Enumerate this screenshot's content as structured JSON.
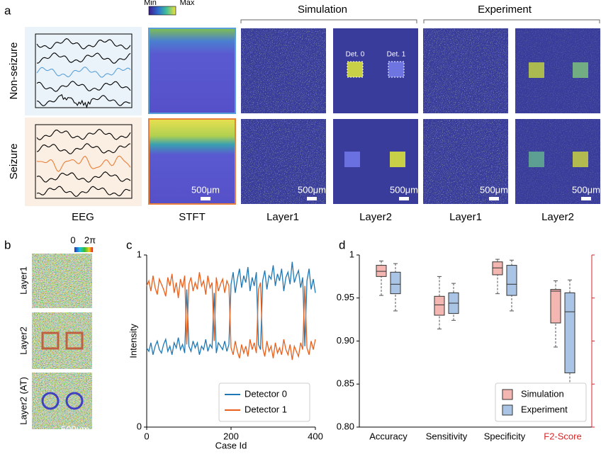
{
  "panel_a": {
    "label": "a",
    "column_headers": [
      "Simulation",
      "Experiment"
    ],
    "colorbar": [
      "Min",
      "Max"
    ],
    "row_labels": [
      "Non-seizure",
      "Seizure"
    ],
    "column_labels": [
      "EEG",
      "STFT",
      "Layer1",
      "Layer2",
      "Layer1",
      "Layer2"
    ],
    "detectors": [
      "Det. 0",
      "Det. 1"
    ],
    "scale_bar": "500μm"
  },
  "panel_b": {
    "label": "b",
    "colorbar": [
      "0",
      "2π"
    ],
    "row_labels": [
      "Layer1",
      "Layer2",
      "Layer2 (AT)"
    ],
    "scale_bar": "500μm"
  },
  "chart_data": [
    {
      "type": "line",
      "label": "c",
      "xlabel": "Case Id",
      "ylabel": "Intensity",
      "xlim": [
        0,
        400
      ],
      "xticks": [
        0,
        200,
        400
      ],
      "ylim": [
        0,
        1
      ],
      "yticks": [
        0,
        1
      ],
      "legend": "lower right",
      "x": [
        0,
        5,
        10,
        15,
        20,
        25,
        30,
        35,
        40,
        45,
        50,
        55,
        60,
        65,
        70,
        75,
        80,
        85,
        90,
        95,
        100,
        105,
        110,
        115,
        120,
        125,
        130,
        135,
        140,
        145,
        150,
        155,
        160,
        165,
        170,
        175,
        180,
        185,
        190,
        195,
        200,
        205,
        210,
        215,
        220,
        225,
        230,
        235,
        240,
        245,
        250,
        255,
        260,
        265,
        270,
        275,
        280,
        285,
        290,
        295,
        300,
        305,
        310,
        315,
        320,
        325,
        330,
        335,
        340,
        345,
        350,
        355,
        360,
        365,
        370,
        375,
        380,
        385,
        390,
        395,
        400
      ],
      "series": [
        {
          "name": "Detector 0",
          "color": "#1f77b4",
          "values": [
            0.46,
            0.44,
            0.49,
            0.42,
            0.47,
            0.5,
            0.45,
            0.43,
            0.48,
            0.51,
            0.44,
            0.47,
            0.42,
            0.49,
            0.46,
            0.52,
            0.45,
            0.48,
            0.43,
            0.8,
            0.47,
            0.44,
            0.5,
            0.46,
            0.49,
            0.42,
            0.47,
            0.45,
            0.51,
            0.44,
            0.48,
            0.46,
            0.78,
            0.43,
            0.49,
            0.47,
            0.45,
            0.5,
            0.44,
            0.48,
            0.83,
            0.9,
            0.78,
            0.86,
            0.92,
            0.81,
            0.88,
            0.84,
            0.93,
            0.79,
            0.87,
            0.82,
            0.9,
            0.48,
            0.45,
            0.85,
            0.91,
            0.8,
            0.88,
            0.86,
            0.94,
            0.82,
            0.89,
            0.85,
            0.92,
            0.79,
            0.87,
            0.9,
            0.83,
            0.96,
            0.84,
            0.88,
            0.91,
            0.81,
            0.87,
            0.47,
            0.85,
            0.92,
            0.8,
            0.86,
            0.78
          ]
        },
        {
          "name": "Detector 1",
          "color": "#e8601c",
          "values": [
            0.82,
            0.85,
            0.79,
            0.88,
            0.81,
            0.77,
            0.86,
            0.83,
            0.8,
            0.76,
            0.87,
            0.82,
            0.89,
            0.78,
            0.84,
            0.75,
            0.86,
            0.81,
            0.88,
            0.48,
            0.83,
            0.87,
            0.79,
            0.84,
            0.8,
            0.9,
            0.82,
            0.85,
            0.77,
            0.88,
            0.81,
            0.84,
            0.5,
            0.87,
            0.79,
            0.83,
            0.86,
            0.78,
            0.85,
            0.82,
            0.46,
            0.42,
            0.5,
            0.44,
            0.4,
            0.48,
            0.43,
            0.47,
            0.41,
            0.51,
            0.45,
            0.49,
            0.43,
            0.8,
            0.84,
            0.46,
            0.41,
            0.5,
            0.44,
            0.47,
            0.4,
            0.49,
            0.43,
            0.46,
            0.42,
            0.51,
            0.45,
            0.42,
            0.48,
            0.39,
            0.47,
            0.44,
            0.41,
            0.49,
            0.45,
            0.82,
            0.46,
            0.42,
            0.5,
            0.45,
            0.51
          ]
        }
      ]
    },
    {
      "type": "box",
      "label": "d",
      "ylim": [
        0.8,
        1
      ],
      "yticks": [
        {
          "value": 0.8,
          "label": "0.80"
        },
        {
          "value": 0.85,
          "label": "0.85"
        },
        {
          "value": 0.9,
          "label": "0.90"
        },
        {
          "value": 0.95,
          "label": "0.95"
        },
        1
      ],
      "categories": [
        "Accuracy",
        "Sensitivity",
        "Specificity",
        "F2-Score"
      ],
      "category_label_colors": [
        "#000000",
        "#000000",
        "#000000",
        "#d62728"
      ],
      "y2_color": "#d62728",
      "legend": "lower right",
      "series": [
        {
          "name": "Simulation",
          "color": "#f4b6b0",
          "values": [
            {
              "min": 0.953,
              "q1": 0.975,
              "median": 0.981,
              "q3": 0.988,
              "max": 0.993
            },
            {
              "min": 0.914,
              "q1": 0.93,
              "median": 0.942,
              "q3": 0.952,
              "max": 0.975
            },
            {
              "min": 0.955,
              "q1": 0.977,
              "median": 0.985,
              "q3": 0.992,
              "max": 0.995
            },
            {
              "min": 0.893,
              "q1": 0.921,
              "median": 0.958,
              "q3": 0.96,
              "max": 0.97
            }
          ]
        },
        {
          "name": "Experiment",
          "color": "#a9c4e4",
          "values": [
            {
              "min": 0.935,
              "q1": 0.955,
              "median": 0.966,
              "q3": 0.98,
              "max": 0.99
            },
            {
              "min": 0.924,
              "q1": 0.932,
              "median": 0.944,
              "q3": 0.956,
              "max": 0.967
            },
            {
              "min": 0.935,
              "q1": 0.953,
              "median": 0.966,
              "q3": 0.988,
              "max": 0.994
            },
            {
              "min": 0.844,
              "q1": 0.863,
              "median": 0.934,
              "q3": 0.956,
              "max": 0.971
            }
          ]
        }
      ]
    }
  ]
}
